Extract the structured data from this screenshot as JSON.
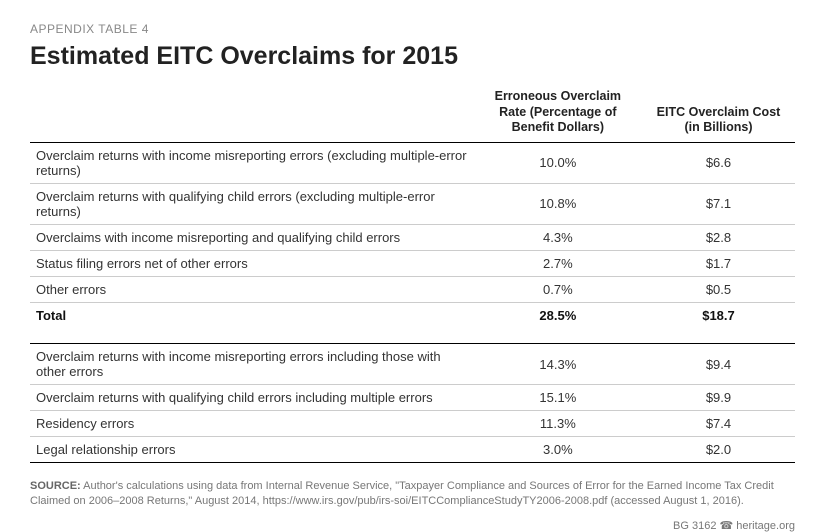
{
  "pretitle": "APPENDIX TABLE 4",
  "title": "Estimated EITC Overclaims for 2015",
  "columns": {
    "desc": "",
    "rate": "Erroneous Overclaim Rate (Percentage of Benefit Dollars)",
    "cost": "EITC Overclaim Cost (in Billions)"
  },
  "section1": [
    {
      "desc": "Overclaim returns with income misreporting errors (excluding multiple-error returns)",
      "rate": "10.0%",
      "cost": "$6.6"
    },
    {
      "desc": "Overclaim returns with qualifying child errors (excluding multiple-error returns)",
      "rate": "10.8%",
      "cost": "$7.1"
    },
    {
      "desc": "Overclaims with income misreporting and qualifying child errors",
      "rate": "4.3%",
      "cost": "$2.8"
    },
    {
      "desc": "Status filing errors net of other errors",
      "rate": "2.7%",
      "cost": "$1.7"
    },
    {
      "desc": "Other errors",
      "rate": "0.7%",
      "cost": "$0.5"
    }
  ],
  "total": {
    "desc": "Total",
    "rate": "28.5%",
    "cost": "$18.7"
  },
  "section2": [
    {
      "desc": "Overclaim returns with  income misreporting errors including those with other errors",
      "rate": "14.3%",
      "cost": "$9.4"
    },
    {
      "desc": "Overclaim returns with qualifying child errors including multiple errors",
      "rate": "15.1%",
      "cost": "$9.9"
    },
    {
      "desc": "Residency errors",
      "rate": "11.3%",
      "cost": "$7.4"
    },
    {
      "desc": "Legal relationship errors",
      "rate": "3.0%",
      "cost": "$2.0"
    }
  ],
  "source_label": "SOURCE:",
  "source_text": " Author's calculations using data from Internal Revenue Service, \"Taxpayer Compliance and Sources of Error for the Earned Income Tax Credit Claimed on 2006–2008 Returns,\" August 2014, https://www.irs.gov/pub/irs-soi/EITCComplianceStudyTY2006-2008.pdf (accessed August 1, 2016).",
  "footer_id": "BG 3162",
  "footer_org": "heritage.org",
  "colors": {
    "text": "#333333",
    "muted": "#888888",
    "rule": "#000000",
    "rowline": "#cccccc",
    "background": "#ffffff"
  },
  "typography": {
    "pretitle_size_pt": 9,
    "title_size_pt": 19,
    "header_size_pt": 9.5,
    "body_size_pt": 10,
    "source_size_pt": 8.3
  }
}
